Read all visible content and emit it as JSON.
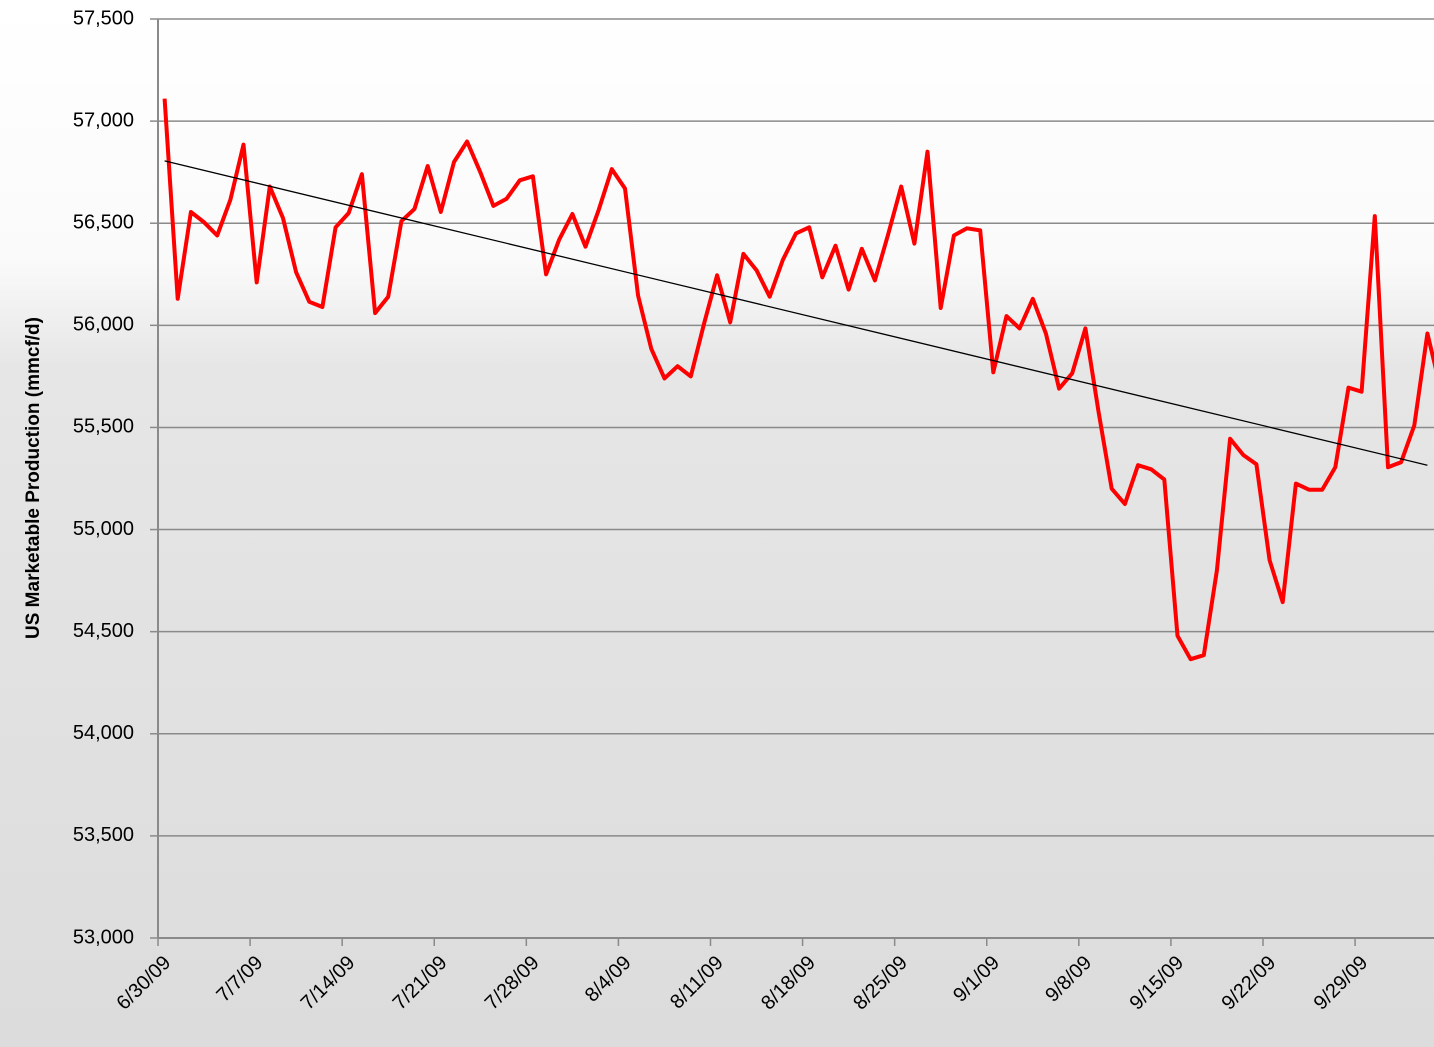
{
  "chart_data": {
    "type": "line",
    "y_label": "US Marketable Production (mmcf/d)",
    "x": [
      "6/30/09",
      "7/1/09",
      "7/2/09",
      "7/3/09",
      "7/4/09",
      "7/5/09",
      "7/6/09",
      "7/7/09",
      "7/8/09",
      "7/9/09",
      "7/10/09",
      "7/11/09",
      "7/12/09",
      "7/13/09",
      "7/14/09",
      "7/15/09",
      "7/16/09",
      "7/17/09",
      "7/18/09",
      "7/19/09",
      "7/20/09",
      "7/21/09",
      "7/22/09",
      "7/23/09",
      "7/24/09",
      "7/25/09",
      "7/26/09",
      "7/27/09",
      "7/28/09",
      "7/29/09",
      "7/30/09",
      "7/31/09",
      "8/1/09",
      "8/2/09",
      "8/3/09",
      "8/4/09",
      "8/5/09",
      "8/6/09",
      "8/7/09",
      "8/8/09",
      "8/9/09",
      "8/10/09",
      "8/11/09",
      "8/12/09",
      "8/13/09",
      "8/14/09",
      "8/15/09",
      "8/16/09",
      "8/17/09",
      "8/18/09",
      "8/19/09",
      "8/20/09",
      "8/21/09",
      "8/22/09",
      "8/23/09",
      "8/24/09",
      "8/25/09",
      "8/26/09",
      "8/27/09",
      "8/28/09",
      "8/29/09",
      "8/30/09",
      "8/31/09",
      "9/1/09",
      "9/2/09",
      "9/3/09",
      "9/4/09",
      "9/5/09",
      "9/6/09",
      "9/7/09",
      "9/8/09",
      "9/9/09",
      "9/10/09",
      "9/11/09",
      "9/12/09",
      "9/13/09",
      "9/14/09",
      "9/15/09",
      "9/16/09",
      "9/17/09",
      "9/18/09",
      "9/19/09",
      "9/20/09",
      "9/21/09",
      "9/22/09",
      "9/23/09",
      "9/24/09",
      "9/25/09",
      "9/26/09",
      "9/27/09",
      "9/28/09",
      "9/29/09",
      "9/30/09",
      "10/1/09",
      "10/2/09",
      "10/3/09",
      "10/4/09",
      "10/5/09"
    ],
    "series": [
      {
        "color": "#ff0000",
        "values": [
          57110,
          56130,
          56555,
          56505,
          56440,
          56615,
          56885,
          56210,
          56680,
          56525,
          56260,
          56115,
          56090,
          56480,
          56550,
          56740,
          56060,
          56140,
          56510,
          56570,
          56780,
          56555,
          56800,
          56900,
          56750,
          56585,
          56620,
          56710,
          56730,
          56250,
          56420,
          56545,
          56385,
          56565,
          56765,
          56670,
          56145,
          55885,
          55740,
          55800,
          55750,
          56005,
          56245,
          56015,
          56350,
          56270,
          56140,
          56320,
          56450,
          56480,
          56235,
          56390,
          56175,
          56375,
          56220,
          56445,
          56680,
          56400,
          56850,
          56085,
          56440,
          56475,
          56465,
          55770,
          56045,
          55985,
          56130,
          55960,
          55690,
          55765,
          55985,
          55575,
          55200,
          55125,
          55315,
          55295,
          55245,
          54480,
          54365,
          54385,
          54800,
          55445,
          55365,
          55320,
          54850,
          54645,
          55225,
          55195,
          55195,
          55305,
          55695,
          55675,
          56535,
          55305,
          55330,
          55510,
          55960,
          55690
        ]
      }
    ],
    "trendline": {
      "color": "#000000",
      "x": [
        "6/30/09",
        "10/4/09"
      ],
      "values": [
        56805,
        55315
      ]
    },
    "xlim": [
      "6/30/09",
      "10/5/09"
    ],
    "xticks": [
      "6/30/09",
      "7/7/09",
      "7/14/09",
      "7/21/09",
      "7/28/09",
      "8/4/09",
      "8/11/09",
      "8/18/09",
      "8/25/09",
      "9/1/09",
      "9/8/09",
      "9/15/09",
      "9/22/09",
      "9/29/09"
    ],
    "ylim": [
      53000,
      57500
    ],
    "yticks": [
      {
        "value": 53000,
        "label": "53,000"
      },
      {
        "value": 53500,
        "label": "53,500"
      },
      {
        "value": 54000,
        "label": "54,000"
      },
      {
        "value": 54500,
        "label": "54,500"
      },
      {
        "value": 55000,
        "label": "55,000"
      },
      {
        "value": 55500,
        "label": "55,500"
      },
      {
        "value": 56000,
        "label": "56,000"
      },
      {
        "value": 56500,
        "label": "56,500"
      },
      {
        "value": 57000,
        "label": "57,000"
      },
      {
        "value": 57500,
        "label": "57,500"
      }
    ],
    "grid": true
  }
}
